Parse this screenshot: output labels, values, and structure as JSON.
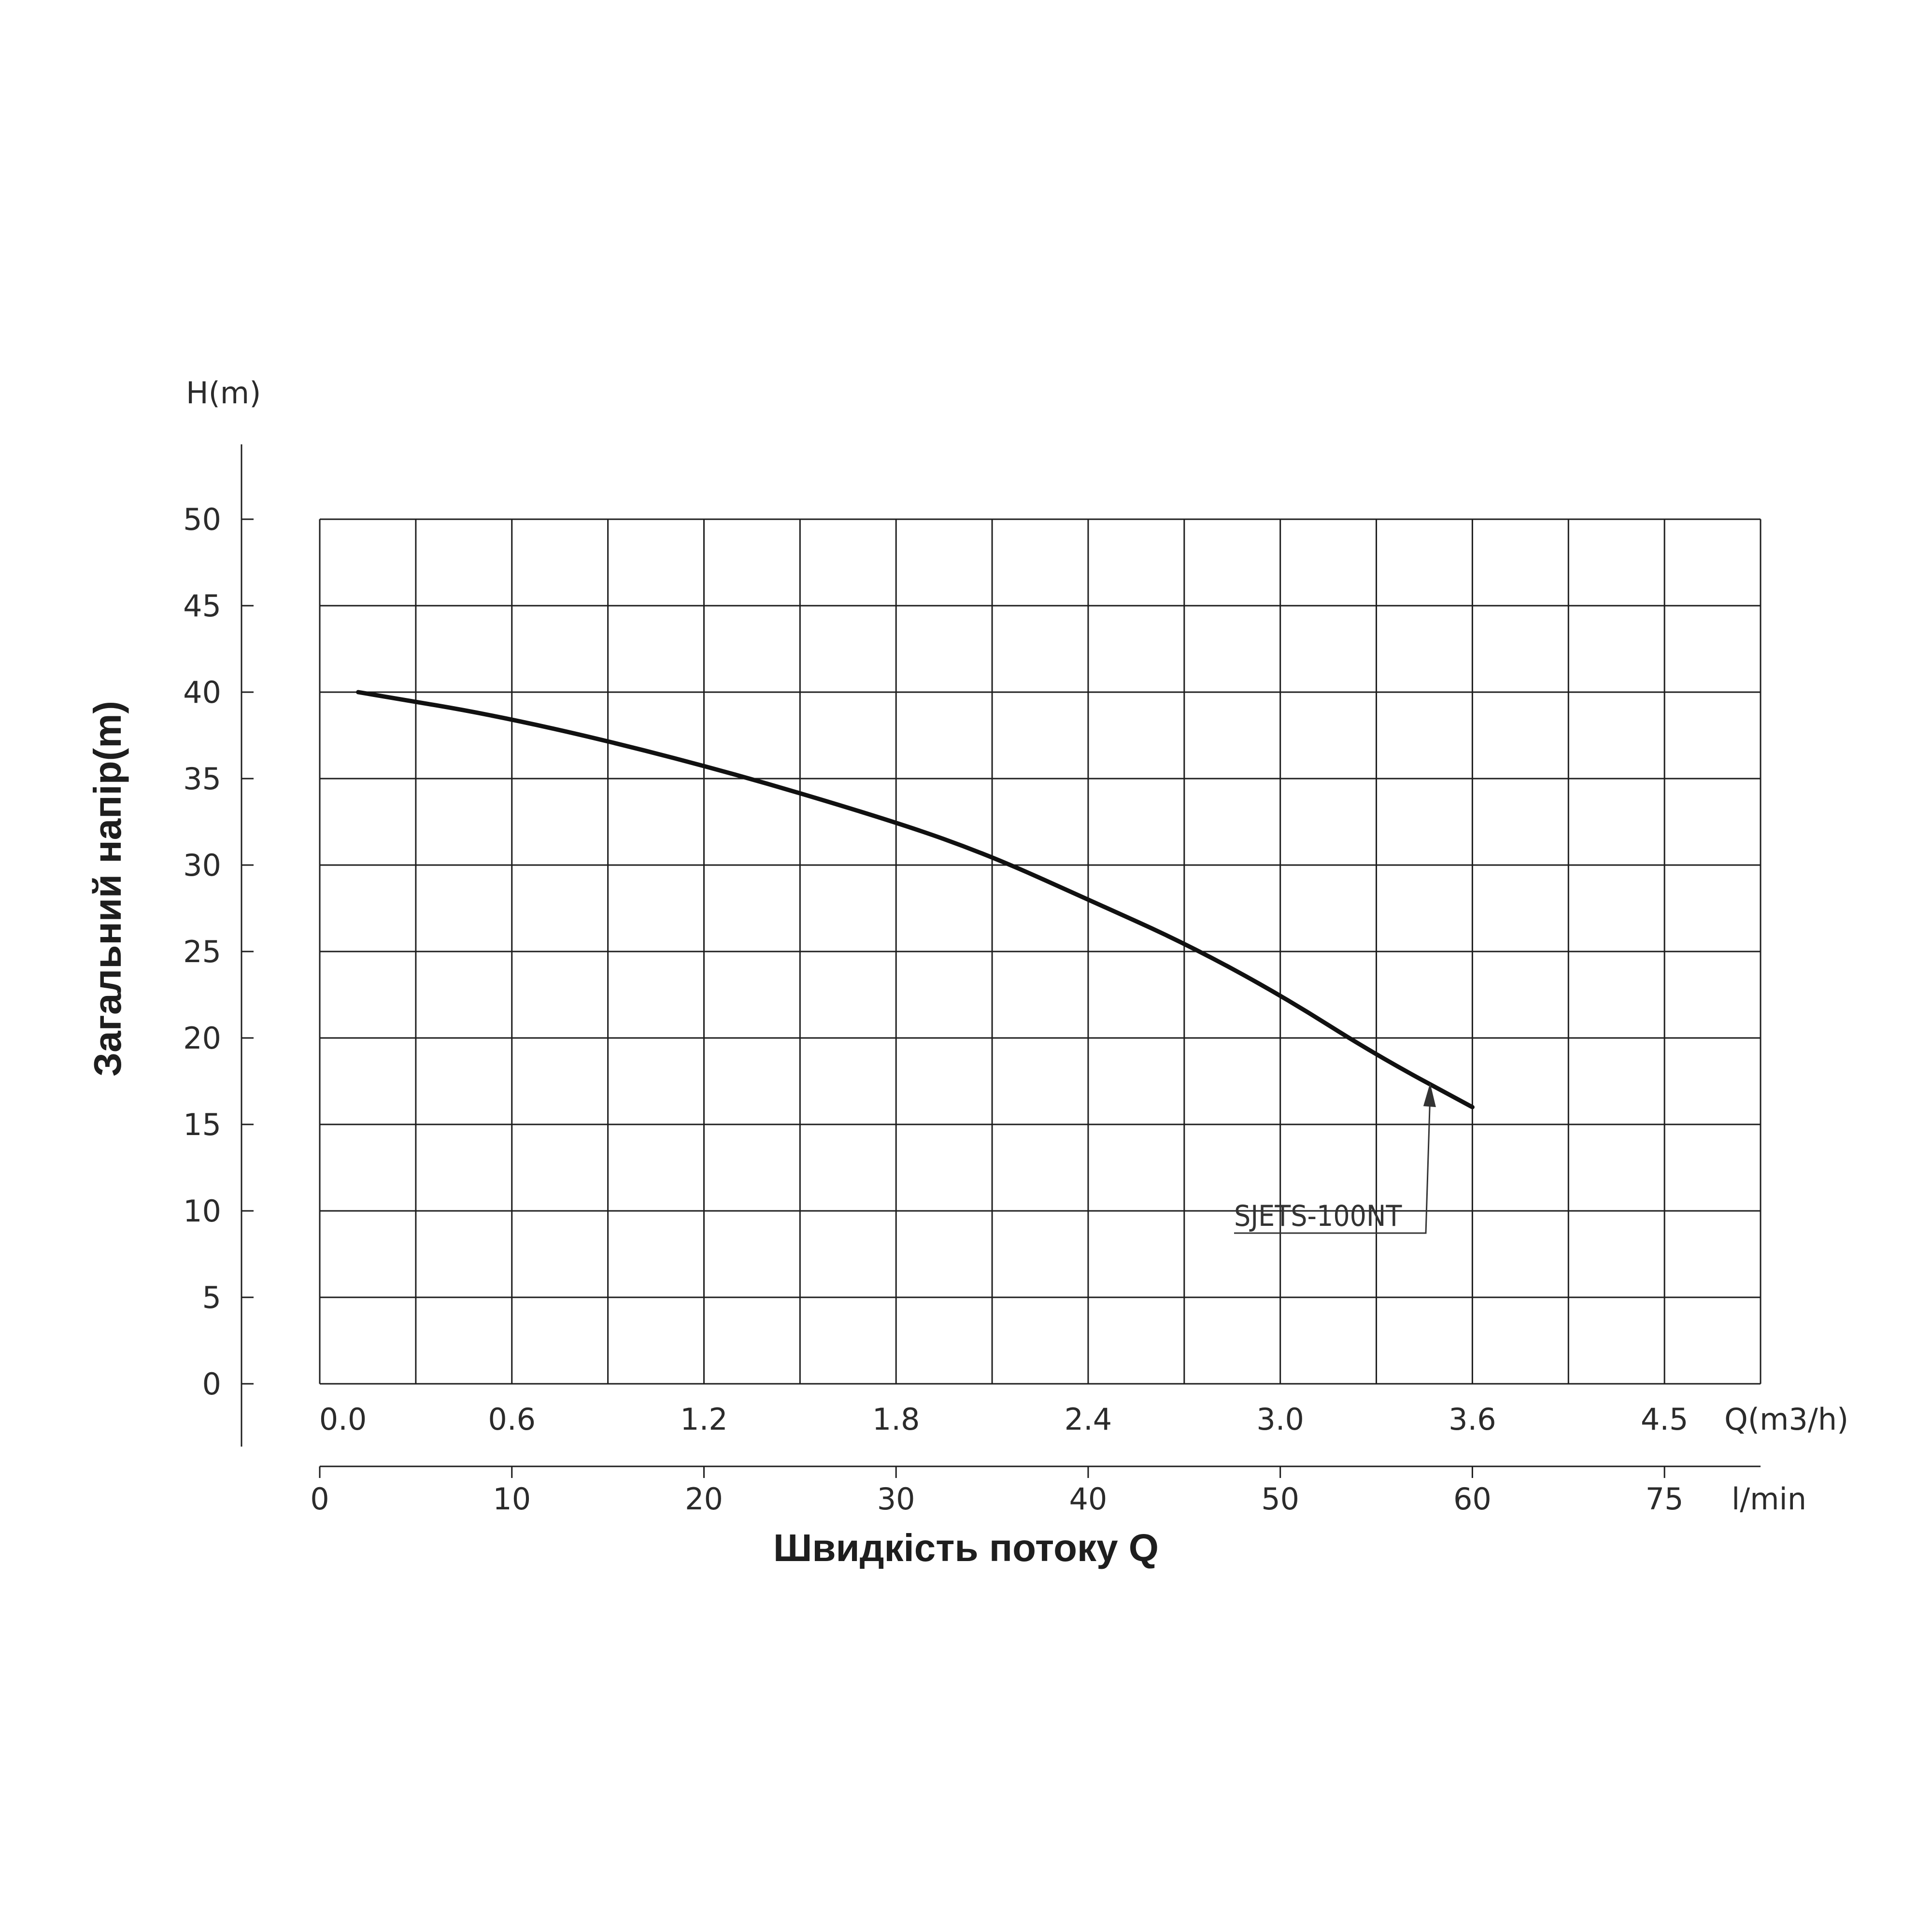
{
  "chart_data": {
    "type": "line",
    "ylabel_top": "H(m)",
    "ylabel": "Загальний напір(m)",
    "xlabel": "Швидкість потоку Q",
    "x_unit_top": "Q(m3/h)",
    "x_unit_bottom": "l/min",
    "ylim": [
      0,
      50
    ],
    "y_ticks": [
      "0",
      "5",
      "10",
      "15",
      "20",
      "25",
      "30",
      "35",
      "40",
      "45",
      "50"
    ],
    "x_ticks_m3h": [
      "0.0",
      "0.6",
      "1.2",
      "1.8",
      "2.4",
      "3.0",
      "3.6",
      "4.5"
    ],
    "x_ticks_lmin": [
      "0",
      "10",
      "20",
      "30",
      "40",
      "50",
      "60",
      "75"
    ],
    "grid": true,
    "series": [
      {
        "name": "SJETS-100NT",
        "x_lmin": [
          2,
          10,
          20,
          30,
          35,
          40,
          45,
          50,
          55,
          60
        ],
        "y": [
          40,
          38.5,
          35.8,
          32.5,
          30.5,
          28,
          25.5,
          22.5,
          19,
          16
        ]
      }
    ]
  }
}
